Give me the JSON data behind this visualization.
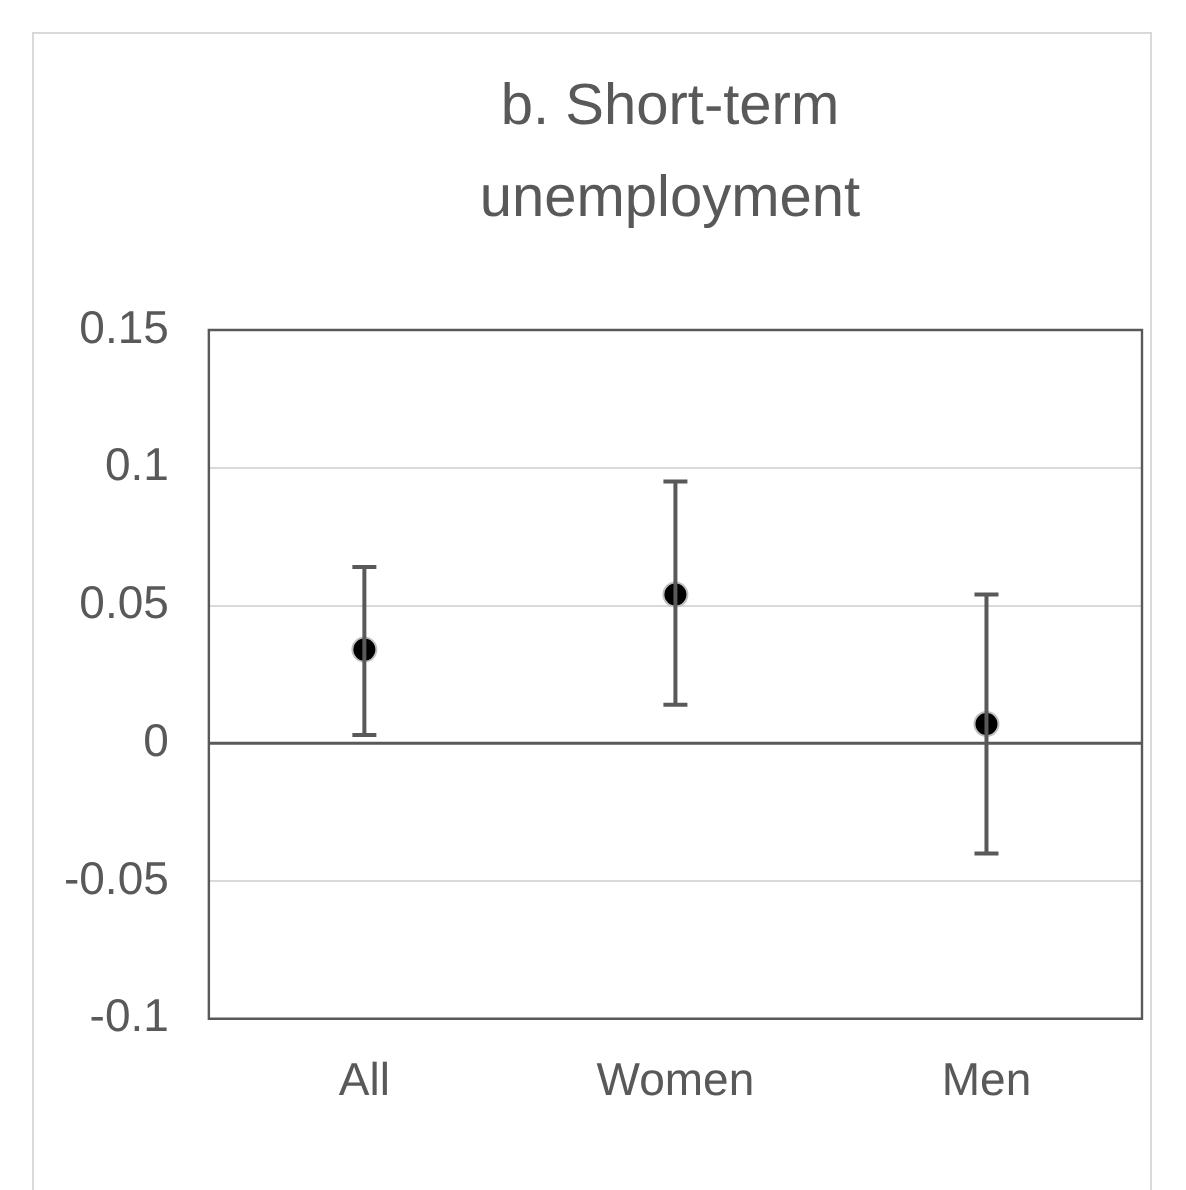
{
  "chart_data": {
    "type": "scatter",
    "title": "b. Short-term unemployment",
    "categories": [
      "All",
      "Women",
      "Men"
    ],
    "values": [
      0.034,
      0.054,
      0.007
    ],
    "errors": [
      [
        0.003,
        0.064
      ],
      [
        0.014,
        0.095
      ],
      [
        -0.04,
        0.054
      ]
    ],
    "color": "#000000",
    "marker": "circle",
    "ylim": [
      -0.1,
      0.15
    ],
    "yticks": [
      -0.1,
      -0.05,
      0,
      0.05,
      0.1,
      0.15
    ],
    "grid": "y",
    "legend": false
  }
}
